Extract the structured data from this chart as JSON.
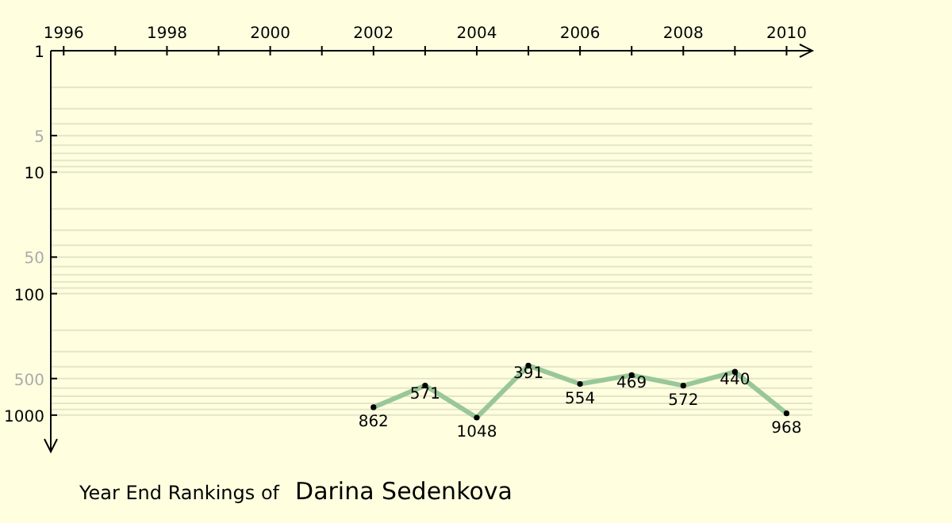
{
  "chart_data": {
    "type": "line",
    "title": "Year End Rankings of",
    "subtitle": "Darina Sedenkova",
    "x": [
      2002,
      2003,
      2004,
      2005,
      2006,
      2007,
      2008,
      2009,
      2010
    ],
    "series": [
      {
        "color": "#99c799",
        "values": [
          862,
          571,
          1048,
          391,
          554,
          469,
          572,
          440,
          968
        ]
      }
    ],
    "data_labels": true,
    "marker": "circle",
    "log": "y",
    "grid": "y",
    "xlim": [
      1995.75,
      2010.5
    ],
    "xticks": [
      1996,
      {
        "value": 1997,
        "label": null
      },
      1998,
      {
        "value": 1999,
        "label": null
      },
      2000,
      {
        "value": 2001,
        "label": null
      },
      2002,
      {
        "value": 2003,
        "label": null
      },
      2004,
      {
        "value": 2005,
        "label": null
      },
      2006,
      {
        "value": 2007,
        "label": null
      },
      2008,
      {
        "value": 2009,
        "label": null
      },
      2010
    ],
    "ylim": [
      2000,
      1
    ],
    "yticks": [
      1,
      {
        "value": 2,
        "label": null
      },
      {
        "value": 3,
        "label": null
      },
      {
        "value": 4,
        "label": null
      },
      5,
      {
        "value": 6,
        "label": null
      },
      {
        "value": 7,
        "label": null
      },
      {
        "value": 8,
        "label": null
      },
      {
        "value": 9,
        "label": null
      },
      10,
      {
        "value": 20,
        "label": null
      },
      {
        "value": 30,
        "label": null
      },
      {
        "value": 40,
        "label": null
      },
      50,
      {
        "value": 60,
        "label": null
      },
      {
        "value": 70,
        "label": null
      },
      {
        "value": 80,
        "label": null
      },
      {
        "value": 90,
        "label": null
      },
      100,
      {
        "value": 200,
        "label": null
      },
      {
        "value": 300,
        "label": null
      },
      {
        "value": 400,
        "label": null
      },
      500,
      {
        "value": 600,
        "label": null
      },
      {
        "value": 700,
        "label": null
      },
      {
        "value": 800,
        "label": null
      },
      {
        "value": 900,
        "label": null
      },
      1000
    ]
  }
}
